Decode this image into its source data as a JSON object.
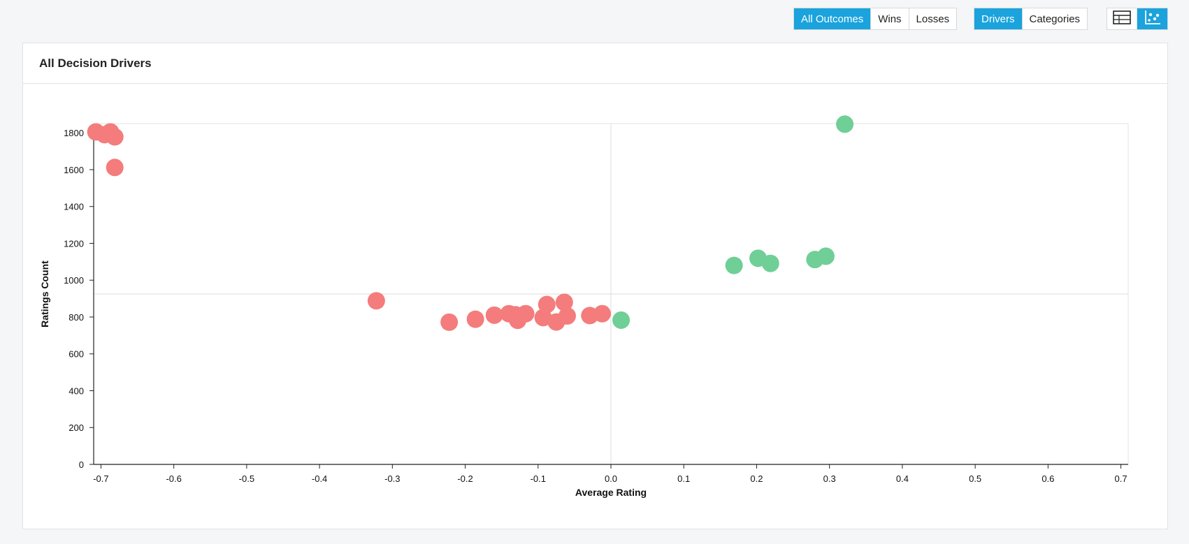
{
  "toolbar": {
    "outcome_filters": [
      {
        "label": "All Outcomes",
        "active": true
      },
      {
        "label": "Wins",
        "active": false
      },
      {
        "label": "Losses",
        "active": false
      }
    ],
    "group_by": [
      {
        "label": "Drivers",
        "active": true
      },
      {
        "label": "Categories",
        "active": false
      }
    ],
    "view_toggle": [
      {
        "icon": "table-icon",
        "active": false
      },
      {
        "icon": "scatter-chart-icon",
        "active": true
      }
    ]
  },
  "card": {
    "title": "All Decision Drivers"
  },
  "colors": {
    "negative": "#f47c7c",
    "positive": "#6fcf97",
    "accent": "#1aa3dc"
  },
  "chart_data": {
    "type": "scatter",
    "title": "All Decision Drivers",
    "xlabel": "Average Rating",
    "ylabel": "Ratings Count",
    "xlim": [
      -0.71,
      0.71
    ],
    "ylim": [
      0,
      1850
    ],
    "x_ticks": [
      -0.7,
      -0.6,
      -0.5,
      -0.4,
      -0.3,
      -0.2,
      -0.1,
      0.0,
      0.1,
      0.2,
      0.3,
      0.4,
      0.5,
      0.6,
      0.7
    ],
    "y_ticks": [
      0,
      200,
      400,
      600,
      800,
      1000,
      1200,
      1400,
      1600,
      1800
    ],
    "reference_lines": {
      "x": 0.0,
      "y": 925
    },
    "grid": false,
    "points": [
      {
        "x": -0.707,
        "y": 1805,
        "color": "#f47c7c"
      },
      {
        "x": -0.695,
        "y": 1790,
        "color": "#f47c7c"
      },
      {
        "x": -0.687,
        "y": 1805,
        "color": "#f47c7c"
      },
      {
        "x": -0.681,
        "y": 1778,
        "color": "#f47c7c"
      },
      {
        "x": -0.681,
        "y": 1612,
        "color": "#f47c7c"
      },
      {
        "x": -0.322,
        "y": 888,
        "color": "#f47c7c"
      },
      {
        "x": -0.222,
        "y": 772,
        "color": "#f47c7c"
      },
      {
        "x": -0.186,
        "y": 788,
        "color": "#f47c7c"
      },
      {
        "x": -0.16,
        "y": 810,
        "color": "#f47c7c"
      },
      {
        "x": -0.14,
        "y": 818,
        "color": "#f47c7c"
      },
      {
        "x": -0.131,
        "y": 812,
        "color": "#f47c7c"
      },
      {
        "x": -0.128,
        "y": 782,
        "color": "#f47c7c"
      },
      {
        "x": -0.117,
        "y": 818,
        "color": "#f47c7c"
      },
      {
        "x": -0.093,
        "y": 797,
        "color": "#f47c7c"
      },
      {
        "x": -0.088,
        "y": 868,
        "color": "#f47c7c"
      },
      {
        "x": -0.075,
        "y": 773,
        "color": "#f47c7c"
      },
      {
        "x": -0.064,
        "y": 880,
        "color": "#f47c7c"
      },
      {
        "x": -0.06,
        "y": 806,
        "color": "#f47c7c"
      },
      {
        "x": -0.029,
        "y": 808,
        "color": "#f47c7c"
      },
      {
        "x": -0.012,
        "y": 818,
        "color": "#f47c7c"
      },
      {
        "x": 0.014,
        "y": 783,
        "color": "#6fcf97"
      },
      {
        "x": 0.169,
        "y": 1080,
        "color": "#6fcf97"
      },
      {
        "x": 0.202,
        "y": 1119,
        "color": "#6fcf97"
      },
      {
        "x": 0.219,
        "y": 1091,
        "color": "#6fcf97"
      },
      {
        "x": 0.28,
        "y": 1112,
        "color": "#6fcf97"
      },
      {
        "x": 0.295,
        "y": 1130,
        "color": "#6fcf97"
      },
      {
        "x": 0.321,
        "y": 1847,
        "color": "#6fcf97"
      }
    ]
  }
}
